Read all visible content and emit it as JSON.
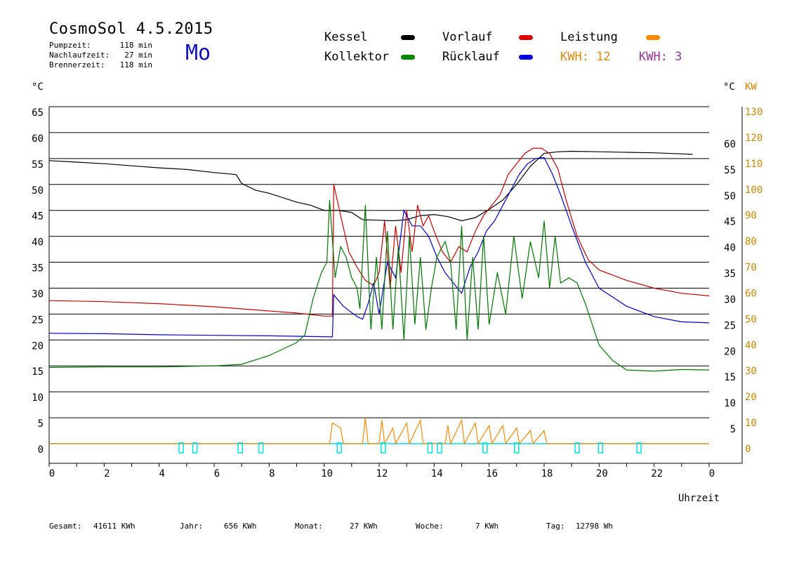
{
  "header": {
    "title": "CosmoSol 4.5.2015",
    "day": "Mo",
    "info": [
      {
        "label": "Pumpzeit:",
        "value": "118 min"
      },
      {
        "label": "Nachlaufzeit:",
        "value": "27 min"
      },
      {
        "label": "Brennerzeit:",
        "value": "118 min"
      }
    ]
  },
  "legend": {
    "kessel": "Kessel",
    "vorlauf": "Vorlauf",
    "leistung": "Leistung",
    "kollektor": "Kollektor",
    "ruecklauf": "Rücklauf",
    "kwh1": "KWH: 12",
    "kwh2": "KWH: 3"
  },
  "axes": {
    "left_unit": "°C",
    "right_unit_c": "°C",
    "right_unit_kw": "KW",
    "x_label": "Uhrzeit"
  },
  "footer": {
    "gesamt_label": "Gesamt:",
    "gesamt_value": "41611 KWh",
    "jahr_label": "Jahr:",
    "jahr_value": "656 KWh",
    "monat_label": "Monat:",
    "monat_value": "27 KWh",
    "woche_label": "Woche:",
    "woche_value": "7 KWh",
    "tag_label": "Tag:",
    "tag_value": "12798 Wh"
  },
  "colors": {
    "kessel": "#000000",
    "vorlauf": "#cc0000",
    "ruecklauf": "#0000cc",
    "kollektor": "#007700",
    "leistung": "#ff8800",
    "kwh2": "#993399",
    "pump": "#00e0e0",
    "kw_axis": "#cc8800"
  },
  "chart_data": {
    "type": "line",
    "xlabel": "Uhrzeit",
    "ylabel": "°C",
    "xlim": [
      0,
      24
    ],
    "ylim": [
      0,
      65
    ],
    "y2lim": [
      0,
      130
    ],
    "x_ticks": [
      "0",
      "2",
      "4",
      "6",
      "8",
      "10",
      "12",
      "14",
      "16",
      "18",
      "20",
      "22",
      "0"
    ],
    "y_ticks_left": [
      "0",
      "5",
      "10",
      "15",
      "20",
      "25",
      "30",
      "35",
      "40",
      "45",
      "50",
      "55",
      "60",
      "65"
    ],
    "y_ticks_right_c": [
      "5",
      "10",
      "15",
      "20",
      "25",
      "30",
      "35",
      "40",
      "45",
      "50",
      "55",
      "60"
    ],
    "y_ticks_right_kw": [
      "0",
      "10",
      "20",
      "30",
      "40",
      "50",
      "60",
      "70",
      "80",
      "90",
      "100",
      "110",
      "120",
      "130"
    ],
    "grid": true,
    "series": [
      {
        "name": "Kessel",
        "color": "#000000",
        "points": [
          [
            0,
            54.6
          ],
          [
            1,
            54.3
          ],
          [
            2,
            54.0
          ],
          [
            3,
            53.6
          ],
          [
            4,
            53.2
          ],
          [
            5,
            52.9
          ],
          [
            6,
            52.3
          ],
          [
            6.8,
            51.9
          ],
          [
            7.0,
            50.2
          ],
          [
            7.5,
            48.9
          ],
          [
            8,
            48.3
          ],
          [
            9,
            46.6
          ],
          [
            9.5,
            46.0
          ],
          [
            10,
            45.0
          ],
          [
            10.5,
            45.0
          ],
          [
            11,
            44.6
          ],
          [
            11.4,
            43.2
          ],
          [
            12,
            43.1
          ],
          [
            12.5,
            43.0
          ],
          [
            13,
            43.2
          ],
          [
            13.5,
            44.0
          ],
          [
            14,
            44.2
          ],
          [
            14.5,
            43.8
          ],
          [
            15,
            43.0
          ],
          [
            15.5,
            43.6
          ],
          [
            16,
            45.2
          ],
          [
            16.5,
            47.0
          ],
          [
            17,
            50.0
          ],
          [
            17.5,
            53.5
          ],
          [
            18,
            56.0
          ],
          [
            18.5,
            56.3
          ],
          [
            19,
            56.4
          ],
          [
            20,
            56.3
          ],
          [
            21,
            56.2
          ],
          [
            22,
            56.1
          ],
          [
            23,
            55.9
          ],
          [
            23.4,
            55.8
          ]
        ]
      },
      {
        "name": "Vorlauf",
        "color": "#cc0000",
        "points": [
          [
            0,
            27.6
          ],
          [
            2,
            27.4
          ],
          [
            4,
            27.0
          ],
          [
            6,
            26.4
          ],
          [
            7.5,
            25.8
          ],
          [
            9,
            25.2
          ],
          [
            10,
            24.6
          ],
          [
            10.3,
            24.6
          ],
          [
            10.35,
            50
          ],
          [
            10.6,
            44
          ],
          [
            10.9,
            37
          ],
          [
            11.2,
            34
          ],
          [
            11.5,
            31.5
          ],
          [
            11.8,
            30.5
          ],
          [
            12,
            33
          ],
          [
            12.2,
            43
          ],
          [
            12.4,
            30
          ],
          [
            12.6,
            42
          ],
          [
            12.8,
            33
          ],
          [
            13,
            45
          ],
          [
            13.2,
            37
          ],
          [
            13.4,
            46
          ],
          [
            13.6,
            42
          ],
          [
            13.8,
            44
          ],
          [
            14,
            41
          ],
          [
            14.3,
            37
          ],
          [
            14.6,
            35
          ],
          [
            14.9,
            38
          ],
          [
            15.2,
            37
          ],
          [
            15.5,
            41
          ],
          [
            15.8,
            44
          ],
          [
            16.1,
            46
          ],
          [
            16.4,
            48
          ],
          [
            16.7,
            52
          ],
          [
            17,
            54
          ],
          [
            17.3,
            56
          ],
          [
            17.6,
            57
          ],
          [
            17.9,
            57
          ],
          [
            18.2,
            56
          ],
          [
            18.5,
            53
          ],
          [
            18.8,
            47
          ],
          [
            19.2,
            40
          ],
          [
            19.6,
            35.5
          ],
          [
            20,
            33.5
          ],
          [
            21,
            31.5
          ],
          [
            22,
            30.0
          ],
          [
            23,
            29.0
          ],
          [
            24,
            28.5
          ]
        ]
      },
      {
        "name": "Rücklauf",
        "color": "#0000cc",
        "points": [
          [
            0,
            21.3
          ],
          [
            2,
            21.2
          ],
          [
            4,
            21.0
          ],
          [
            6,
            20.9
          ],
          [
            8,
            20.8
          ],
          [
            10.3,
            20.6
          ],
          [
            10.35,
            28.7
          ],
          [
            10.7,
            26.5
          ],
          [
            11.2,
            24.5
          ],
          [
            11.4,
            24.0
          ],
          [
            11.6,
            27
          ],
          [
            11.8,
            31
          ],
          [
            12,
            25
          ],
          [
            12.3,
            35
          ],
          [
            12.6,
            32
          ],
          [
            12.9,
            45
          ],
          [
            13.2,
            42
          ],
          [
            13.5,
            42
          ],
          [
            13.8,
            40
          ],
          [
            14.1,
            36
          ],
          [
            14.4,
            33
          ],
          [
            14.7,
            31
          ],
          [
            15,
            29
          ],
          [
            15.3,
            34
          ],
          [
            15.6,
            37
          ],
          [
            15.9,
            41
          ],
          [
            16.2,
            43
          ],
          [
            16.5,
            46
          ],
          [
            16.8,
            49
          ],
          [
            17.1,
            52
          ],
          [
            17.4,
            54
          ],
          [
            17.7,
            55
          ],
          [
            18,
            55.2
          ],
          [
            18.3,
            52
          ],
          [
            18.6,
            48
          ],
          [
            19,
            42
          ],
          [
            19.5,
            35
          ],
          [
            20,
            30
          ],
          [
            21,
            26.5
          ],
          [
            22,
            24.5
          ],
          [
            23,
            23.5
          ],
          [
            24,
            23.3
          ]
        ]
      },
      {
        "name": "Kollektor",
        "color": "#007700",
        "points": [
          [
            0,
            14.7
          ],
          [
            2,
            14.8
          ],
          [
            4,
            14.8
          ],
          [
            6,
            15.0
          ],
          [
            7,
            15.3
          ],
          [
            8,
            17.0
          ],
          [
            9,
            19.5
          ],
          [
            9.3,
            21
          ],
          [
            9.6,
            28
          ],
          [
            9.9,
            33
          ],
          [
            10.1,
            35
          ],
          [
            10.2,
            47
          ],
          [
            10.4,
            32
          ],
          [
            10.6,
            38
          ],
          [
            10.8,
            36
          ],
          [
            11.0,
            32
          ],
          [
            11.2,
            30
          ],
          [
            11.3,
            26
          ],
          [
            11.5,
            46
          ],
          [
            11.7,
            22
          ],
          [
            11.9,
            36
          ],
          [
            12.1,
            22
          ],
          [
            12.3,
            41
          ],
          [
            12.5,
            22
          ],
          [
            12.7,
            38
          ],
          [
            12.9,
            20
          ],
          [
            13.1,
            40
          ],
          [
            13.3,
            23
          ],
          [
            13.5,
            36
          ],
          [
            13.7,
            22
          ],
          [
            13.9,
            30
          ],
          [
            14.1,
            36
          ],
          [
            14.4,
            39
          ],
          [
            14.6,
            35
          ],
          [
            14.8,
            22
          ],
          [
            15.0,
            42
          ],
          [
            15.2,
            20
          ],
          [
            15.4,
            36
          ],
          [
            15.6,
            22
          ],
          [
            15.8,
            40
          ],
          [
            16.0,
            23
          ],
          [
            16.3,
            33
          ],
          [
            16.6,
            25
          ],
          [
            16.9,
            40
          ],
          [
            17.2,
            28
          ],
          [
            17.5,
            39
          ],
          [
            17.8,
            32
          ],
          [
            18.0,
            43
          ],
          [
            18.2,
            30
          ],
          [
            18.4,
            40
          ],
          [
            18.6,
            31
          ],
          [
            18.9,
            32
          ],
          [
            19.2,
            31
          ],
          [
            19.5,
            27
          ],
          [
            20,
            19
          ],
          [
            20.5,
            16
          ],
          [
            21,
            14.2
          ],
          [
            22,
            14.0
          ],
          [
            23,
            14.3
          ],
          [
            24,
            14.2
          ]
        ]
      }
    ],
    "leistung_kw": [
      [
        0,
        0
      ],
      [
        10.2,
        0
      ],
      [
        10.3,
        8
      ],
      [
        10.6,
        6
      ],
      [
        10.7,
        0
      ],
      [
        11.4,
        0
      ],
      [
        11.5,
        10
      ],
      [
        11.6,
        0
      ],
      [
        12,
        0
      ],
      [
        12.1,
        9
      ],
      [
        12.2,
        0
      ],
      [
        12.5,
        6
      ],
      [
        12.6,
        0
      ],
      [
        13,
        8
      ],
      [
        13.1,
        0
      ],
      [
        13.5,
        9
      ],
      [
        13.6,
        0
      ],
      [
        14,
        0
      ],
      [
        14.4,
        0
      ],
      [
        14.5,
        7
      ],
      [
        14.6,
        0
      ],
      [
        15,
        9
      ],
      [
        15.1,
        0
      ],
      [
        15.5,
        8
      ],
      [
        15.6,
        0
      ],
      [
        16,
        7
      ],
      [
        16.1,
        0
      ],
      [
        16.5,
        7
      ],
      [
        16.6,
        0
      ],
      [
        17,
        6
      ],
      [
        17.1,
        0
      ],
      [
        17.5,
        5
      ],
      [
        17.6,
        0
      ],
      [
        18,
        5
      ],
      [
        18.1,
        0
      ],
      [
        18.5,
        0
      ],
      [
        24,
        0
      ]
    ],
    "pump_markers_h": [
      4.8,
      5.3,
      6.95,
      7.7,
      10.55,
      12.15,
      13.85,
      14.2,
      15.85,
      17.0,
      19.2,
      20.05,
      21.45
    ]
  }
}
